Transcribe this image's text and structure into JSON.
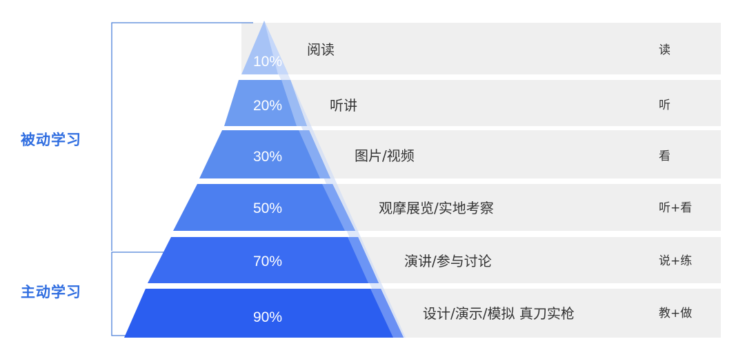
{
  "groups": [
    {
      "label": "被动学习"
    },
    {
      "label": "主动学习"
    }
  ],
  "levels": [
    {
      "percent": "10%",
      "method": "阅读",
      "sense": "读"
    },
    {
      "percent": "20%",
      "method": "听讲",
      "sense": "听"
    },
    {
      "percent": "30%",
      "method": "图片/视频",
      "sense": "看"
    },
    {
      "percent": "50%",
      "method": "观摩展览/实地考察",
      "sense": "听+看"
    },
    {
      "percent": "70%",
      "method": "演讲/参与讨论",
      "sense": "说+练"
    },
    {
      "percent": "90%",
      "method": "设计/演示/模拟 真刀实枪",
      "sense": "教+做"
    }
  ],
  "colors": {
    "accent": "#2f6de0",
    "row_bg": "#efefef",
    "bracket": "#4a7fd8",
    "tier_colors": [
      "#a7c3f6",
      "#6e9cf0",
      "#5a8cee",
      "#4c7ff0",
      "#3a6cf2",
      "#2b5ef0"
    ]
  }
}
